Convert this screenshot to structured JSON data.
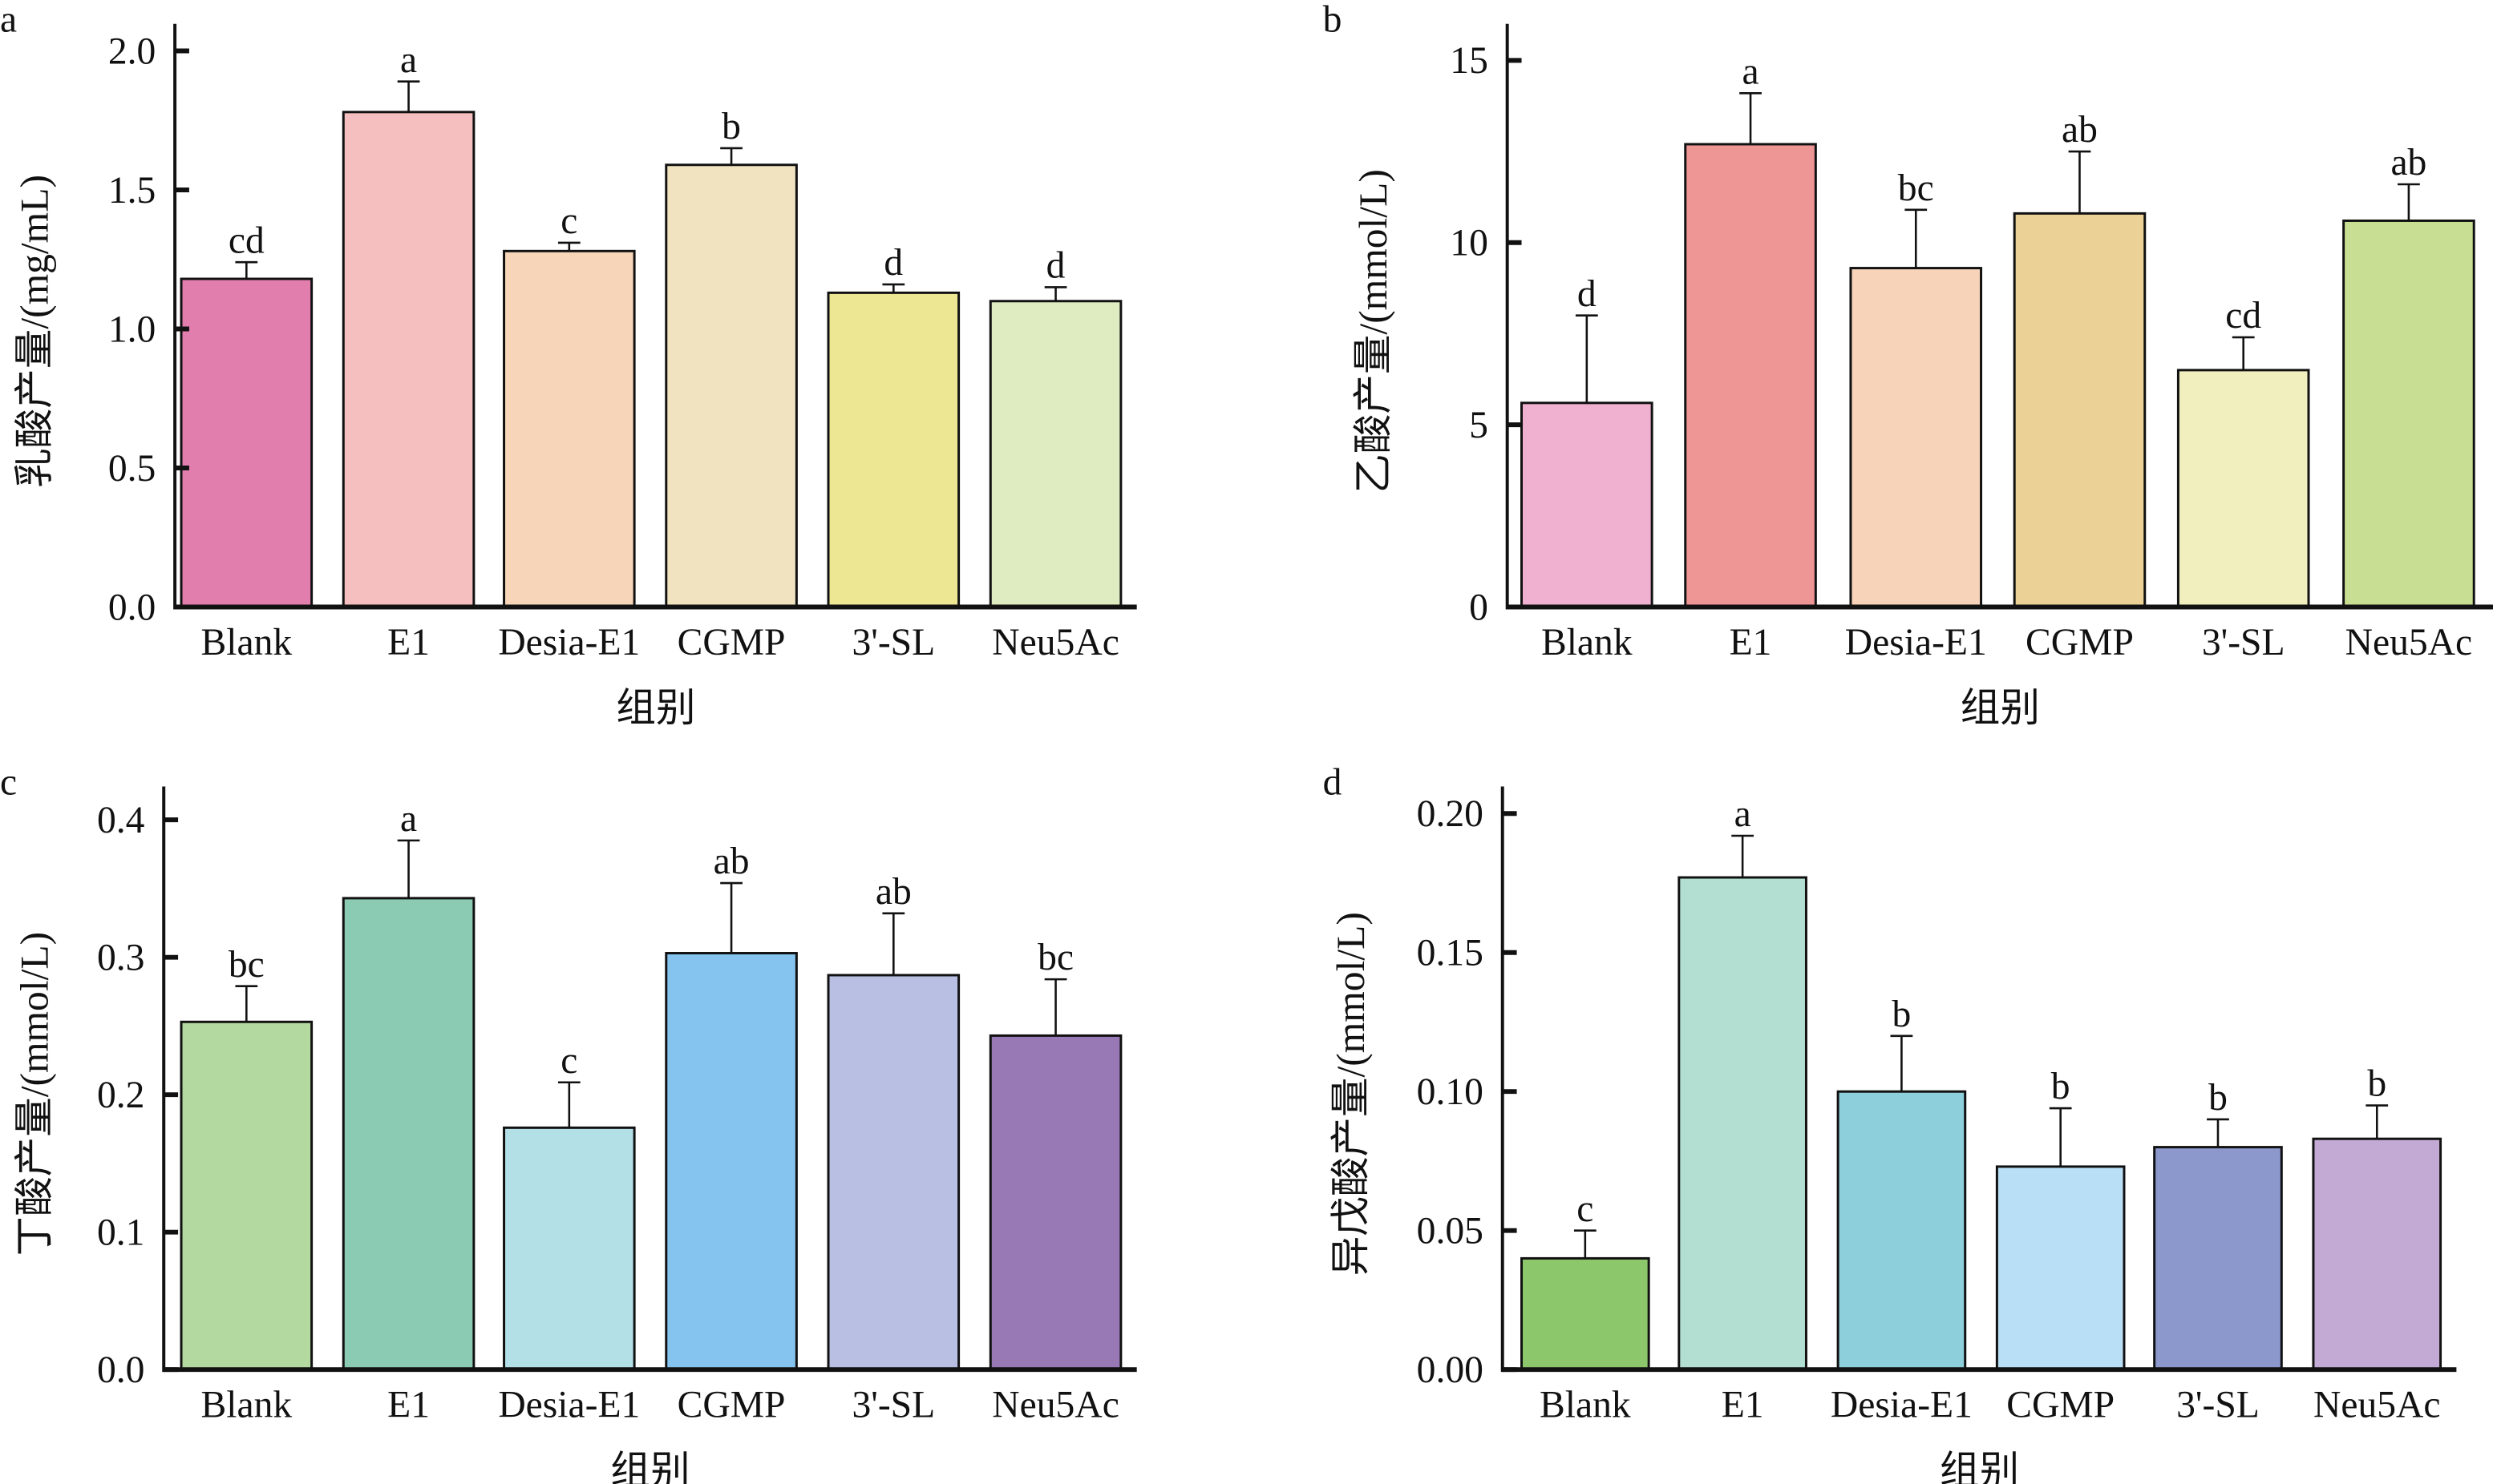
{
  "chart_data": [
    {
      "panel": "a",
      "type": "bar",
      "categories": [
        "Blank",
        "E1",
        "Desia-E1",
        "CGMP",
        "3'-SL",
        "Neu5Ac"
      ],
      "values": [
        1.18,
        1.78,
        1.28,
        1.59,
        1.13,
        1.1
      ],
      "errors": [
        0.06,
        0.11,
        0.03,
        0.06,
        0.03,
        0.05
      ],
      "significance": [
        "cd",
        "a",
        "c",
        "b",
        "d",
        "d"
      ],
      "colors": [
        "#e27eae",
        "#f5bfc0",
        "#f7d5b8",
        "#f2e3c0",
        "#ede794",
        "#dfebc0"
      ],
      "xlabel": "组别",
      "ylabel": "乳酸产量/(mg/mL)",
      "ylim": [
        0,
        2.1
      ],
      "yticks": [
        0.0,
        0.5,
        1.0,
        1.5,
        2.0
      ],
      "ytick_labels": [
        "0.0",
        "0.5",
        "1.0",
        "1.5",
        "2.0"
      ]
    },
    {
      "panel": "b",
      "type": "bar",
      "categories": [
        "Blank",
        "E1",
        "Desia-E1",
        "CGMP",
        "3'-SL",
        "Neu5Ac"
      ],
      "values": [
        5.6,
        12.7,
        9.3,
        10.8,
        6.5,
        10.6
      ],
      "errors": [
        2.4,
        1.4,
        1.6,
        1.7,
        0.9,
        1.0
      ],
      "significance": [
        "d",
        "a",
        "bc",
        "ab",
        "cd",
        "ab"
      ],
      "colors": [
        "#f0b0d0",
        "#ee9595",
        "#f7d4b9",
        "#ebd196",
        "#f2efbe",
        "#c8df93"
      ],
      "xlabel": "组别",
      "ylabel": "乙酸产量/(mmol/L)",
      "ylim": [
        0,
        16
      ],
      "yticks": [
        0,
        5,
        10,
        15
      ],
      "ytick_labels": [
        "0",
        "5",
        "10",
        "15"
      ]
    },
    {
      "panel": "c",
      "type": "bar",
      "categories": [
        "Blank",
        "E1",
        "Desia-E1",
        "CGMP",
        "3'-SL",
        "Neu5Ac"
      ],
      "values": [
        0.253,
        0.343,
        0.176,
        0.303,
        0.287,
        0.243
      ],
      "errors": [
        0.026,
        0.042,
        0.033,
        0.051,
        0.045,
        0.041
      ],
      "significance": [
        "bc",
        "a",
        "c",
        "ab",
        "ab",
        "bc"
      ],
      "colors": [
        "#b3d9a0",
        "#8ccbb3",
        "#b3dfe6",
        "#85c4ee",
        "#b8bfe2",
        "#9879b6"
      ],
      "xlabel": "组别",
      "ylabel": "丁酸产量/(mmol/L)",
      "ylim": [
        0,
        0.425
      ],
      "yticks": [
        0.0,
        0.1,
        0.2,
        0.3,
        0.4
      ],
      "ytick_labels": [
        "0.0",
        "0.1",
        "0.2",
        "0.3",
        "0.4"
      ]
    },
    {
      "panel": "d",
      "type": "bar",
      "categories": [
        "Blank",
        "E1",
        "Desia-E1",
        "CGMP",
        "3'-SL",
        "Neu5Ac"
      ],
      "values": [
        0.04,
        0.177,
        0.1,
        0.073,
        0.08,
        0.083
      ],
      "errors": [
        0.01,
        0.015,
        0.02,
        0.021,
        0.01,
        0.012
      ],
      "significance": [
        "c",
        "a",
        "b",
        "b",
        "b",
        "b"
      ],
      "colors": [
        "#8dc76c",
        "#b3dfd2",
        "#8ecfdc",
        "#b8dff5",
        "#8c97cb",
        "#c3aad4"
      ],
      "xlabel": "组别",
      "ylabel": "异戊酸产量/(mmol/L)",
      "ylim": [
        0,
        0.21
      ],
      "yticks": [
        0.0,
        0.05,
        0.1,
        0.15,
        0.2
      ],
      "ytick_labels": [
        "0.00",
        "0.05",
        "0.10",
        "0.15",
        "0.20"
      ]
    }
  ]
}
